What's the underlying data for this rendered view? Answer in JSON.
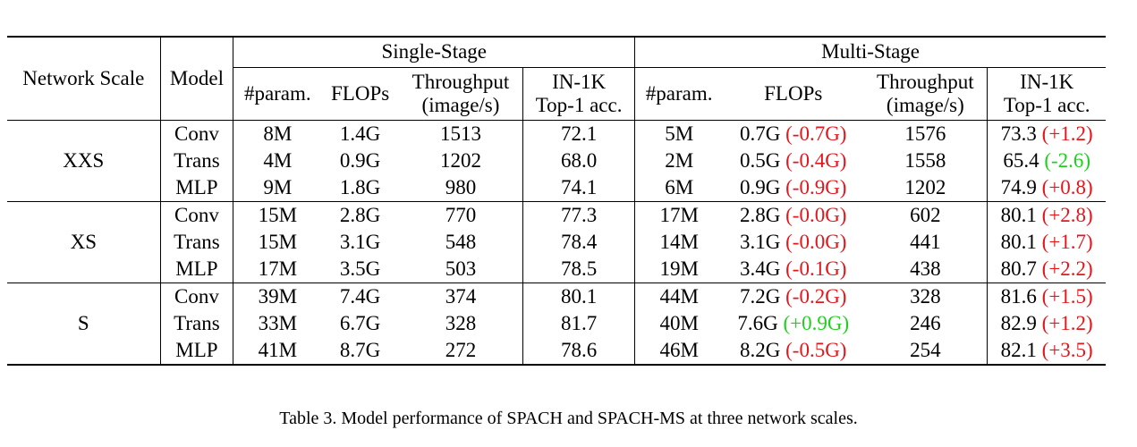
{
  "table": {
    "header": {
      "network_scale": "Network Scale",
      "model": "Model",
      "single_stage": "Single-Stage",
      "multi_stage": "Multi-Stage",
      "param": "#param.",
      "flops": "FLOPs",
      "throughput_line1": "Throughput",
      "throughput_line2": "(image/s)",
      "acc_line1": "IN-1K",
      "acc_line2": "Top-1 acc."
    },
    "groups": [
      {
        "scale": "XXS",
        "rows": [
          {
            "model": "Conv",
            "ss_param": "8M",
            "ss_flops": "1.4G",
            "ss_throughput": "1513",
            "ss_acc": "72.1",
            "ms_param": "5M",
            "ms_flops": "0.7G",
            "ms_flops_delta": "(-0.7G)",
            "ms_flops_delta_color": "red",
            "ms_throughput": "1576",
            "ms_acc": "73.3",
            "ms_acc_delta": "(+1.2)",
            "ms_acc_delta_color": "red"
          },
          {
            "model": "Trans",
            "ss_param": "4M",
            "ss_flops": "0.9G",
            "ss_throughput": "1202",
            "ss_acc": "68.0",
            "ms_param": "2M",
            "ms_flops": "0.5G",
            "ms_flops_delta": "(-0.4G)",
            "ms_flops_delta_color": "red",
            "ms_throughput": "1558",
            "ms_acc": "65.4",
            "ms_acc_delta": "(-2.6)",
            "ms_acc_delta_color": "green"
          },
          {
            "model": "MLP",
            "ss_param": "9M",
            "ss_flops": "1.8G",
            "ss_throughput": "980",
            "ss_acc": "74.1",
            "ms_param": "6M",
            "ms_flops": "0.9G",
            "ms_flops_delta": "(-0.9G)",
            "ms_flops_delta_color": "red",
            "ms_throughput": "1202",
            "ms_acc": "74.9",
            "ms_acc_delta": "(+0.8)",
            "ms_acc_delta_color": "red"
          }
        ]
      },
      {
        "scale": "XS",
        "rows": [
          {
            "model": "Conv",
            "ss_param": "15M",
            "ss_flops": "2.8G",
            "ss_throughput": "770",
            "ss_acc": "77.3",
            "ms_param": "17M",
            "ms_flops": "2.8G",
            "ms_flops_delta": "(-0.0G)",
            "ms_flops_delta_color": "red",
            "ms_throughput": "602",
            "ms_acc": "80.1",
            "ms_acc_delta": "(+2.8)",
            "ms_acc_delta_color": "red"
          },
          {
            "model": "Trans",
            "ss_param": "15M",
            "ss_flops": "3.1G",
            "ss_throughput": "548",
            "ss_acc": "78.4",
            "ms_param": "14M",
            "ms_flops": "3.1G",
            "ms_flops_delta": "(-0.0G)",
            "ms_flops_delta_color": "red",
            "ms_throughput": "441",
            "ms_acc": "80.1",
            "ms_acc_delta": "(+1.7)",
            "ms_acc_delta_color": "red"
          },
          {
            "model": "MLP",
            "ss_param": "17M",
            "ss_flops": "3.5G",
            "ss_throughput": "503",
            "ss_acc": "78.5",
            "ms_param": "19M",
            "ms_flops": "3.4G",
            "ms_flops_delta": "(-0.1G)",
            "ms_flops_delta_color": "red",
            "ms_throughput": "438",
            "ms_acc": "80.7",
            "ms_acc_delta": "(+2.2)",
            "ms_acc_delta_color": "red"
          }
        ]
      },
      {
        "scale": "S",
        "rows": [
          {
            "model": "Conv",
            "ss_param": "39M",
            "ss_flops": "7.4G",
            "ss_throughput": "374",
            "ss_acc": "80.1",
            "ms_param": "44M",
            "ms_flops": "7.2G",
            "ms_flops_delta": "(-0.2G)",
            "ms_flops_delta_color": "red",
            "ms_throughput": "328",
            "ms_acc": "81.6",
            "ms_acc_delta": "(+1.5)",
            "ms_acc_delta_color": "red"
          },
          {
            "model": "Trans",
            "ss_param": "33M",
            "ss_flops": "6.7G",
            "ss_throughput": "328",
            "ss_acc": "81.7",
            "ms_param": "40M",
            "ms_flops": "7.6G",
            "ms_flops_delta": "(+0.9G)",
            "ms_flops_delta_color": "green",
            "ms_throughput": "246",
            "ms_acc": "82.9",
            "ms_acc_delta": "(+1.2)",
            "ms_acc_delta_color": "red"
          },
          {
            "model": "MLP",
            "ss_param": "41M",
            "ss_flops": "8.7G",
            "ss_throughput": "272",
            "ss_acc": "78.6",
            "ms_param": "46M",
            "ms_flops": "8.2G",
            "ms_flops_delta": "(-0.5G)",
            "ms_flops_delta_color": "red",
            "ms_throughput": "254",
            "ms_acc": "82.1",
            "ms_acc_delta": "(+3.5)",
            "ms_acc_delta_color": "red"
          }
        ]
      }
    ]
  },
  "colors": {
    "red": "#e3161c",
    "green": "#1fcf1f"
  },
  "caption": "Table 3. Model performance of SPACH and SPACH-MS at three network scales."
}
